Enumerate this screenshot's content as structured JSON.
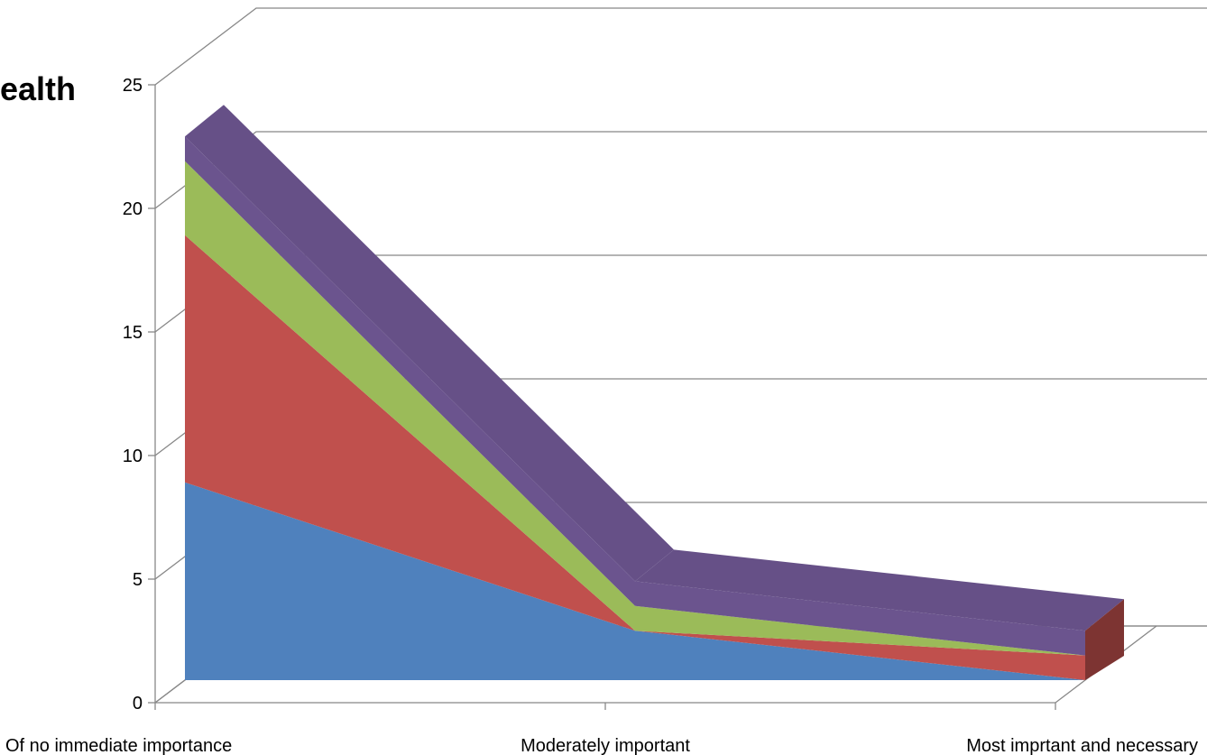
{
  "chart_data": {
    "type": "area",
    "title": "ealth",
    "categories": [
      "Of no immediate importance",
      "Moderately important",
      "Most imprtant and necessary"
    ],
    "y_ticks": [
      "0",
      "5",
      "10",
      "15",
      "20",
      "25"
    ],
    "ylim": [
      0,
      25
    ],
    "stacked": true,
    "three_d": true,
    "grid": true,
    "series": [
      {
        "values": [
          8,
          2,
          0
        ],
        "color": "#4F81BD"
      },
      {
        "values": [
          10,
          0,
          1
        ],
        "color": "#C0504D"
      },
      {
        "values": [
          3,
          1,
          0
        ],
        "color": "#9BBB59"
      },
      {
        "values": [
          1,
          1,
          1
        ],
        "color": "#6B548E"
      }
    ]
  }
}
